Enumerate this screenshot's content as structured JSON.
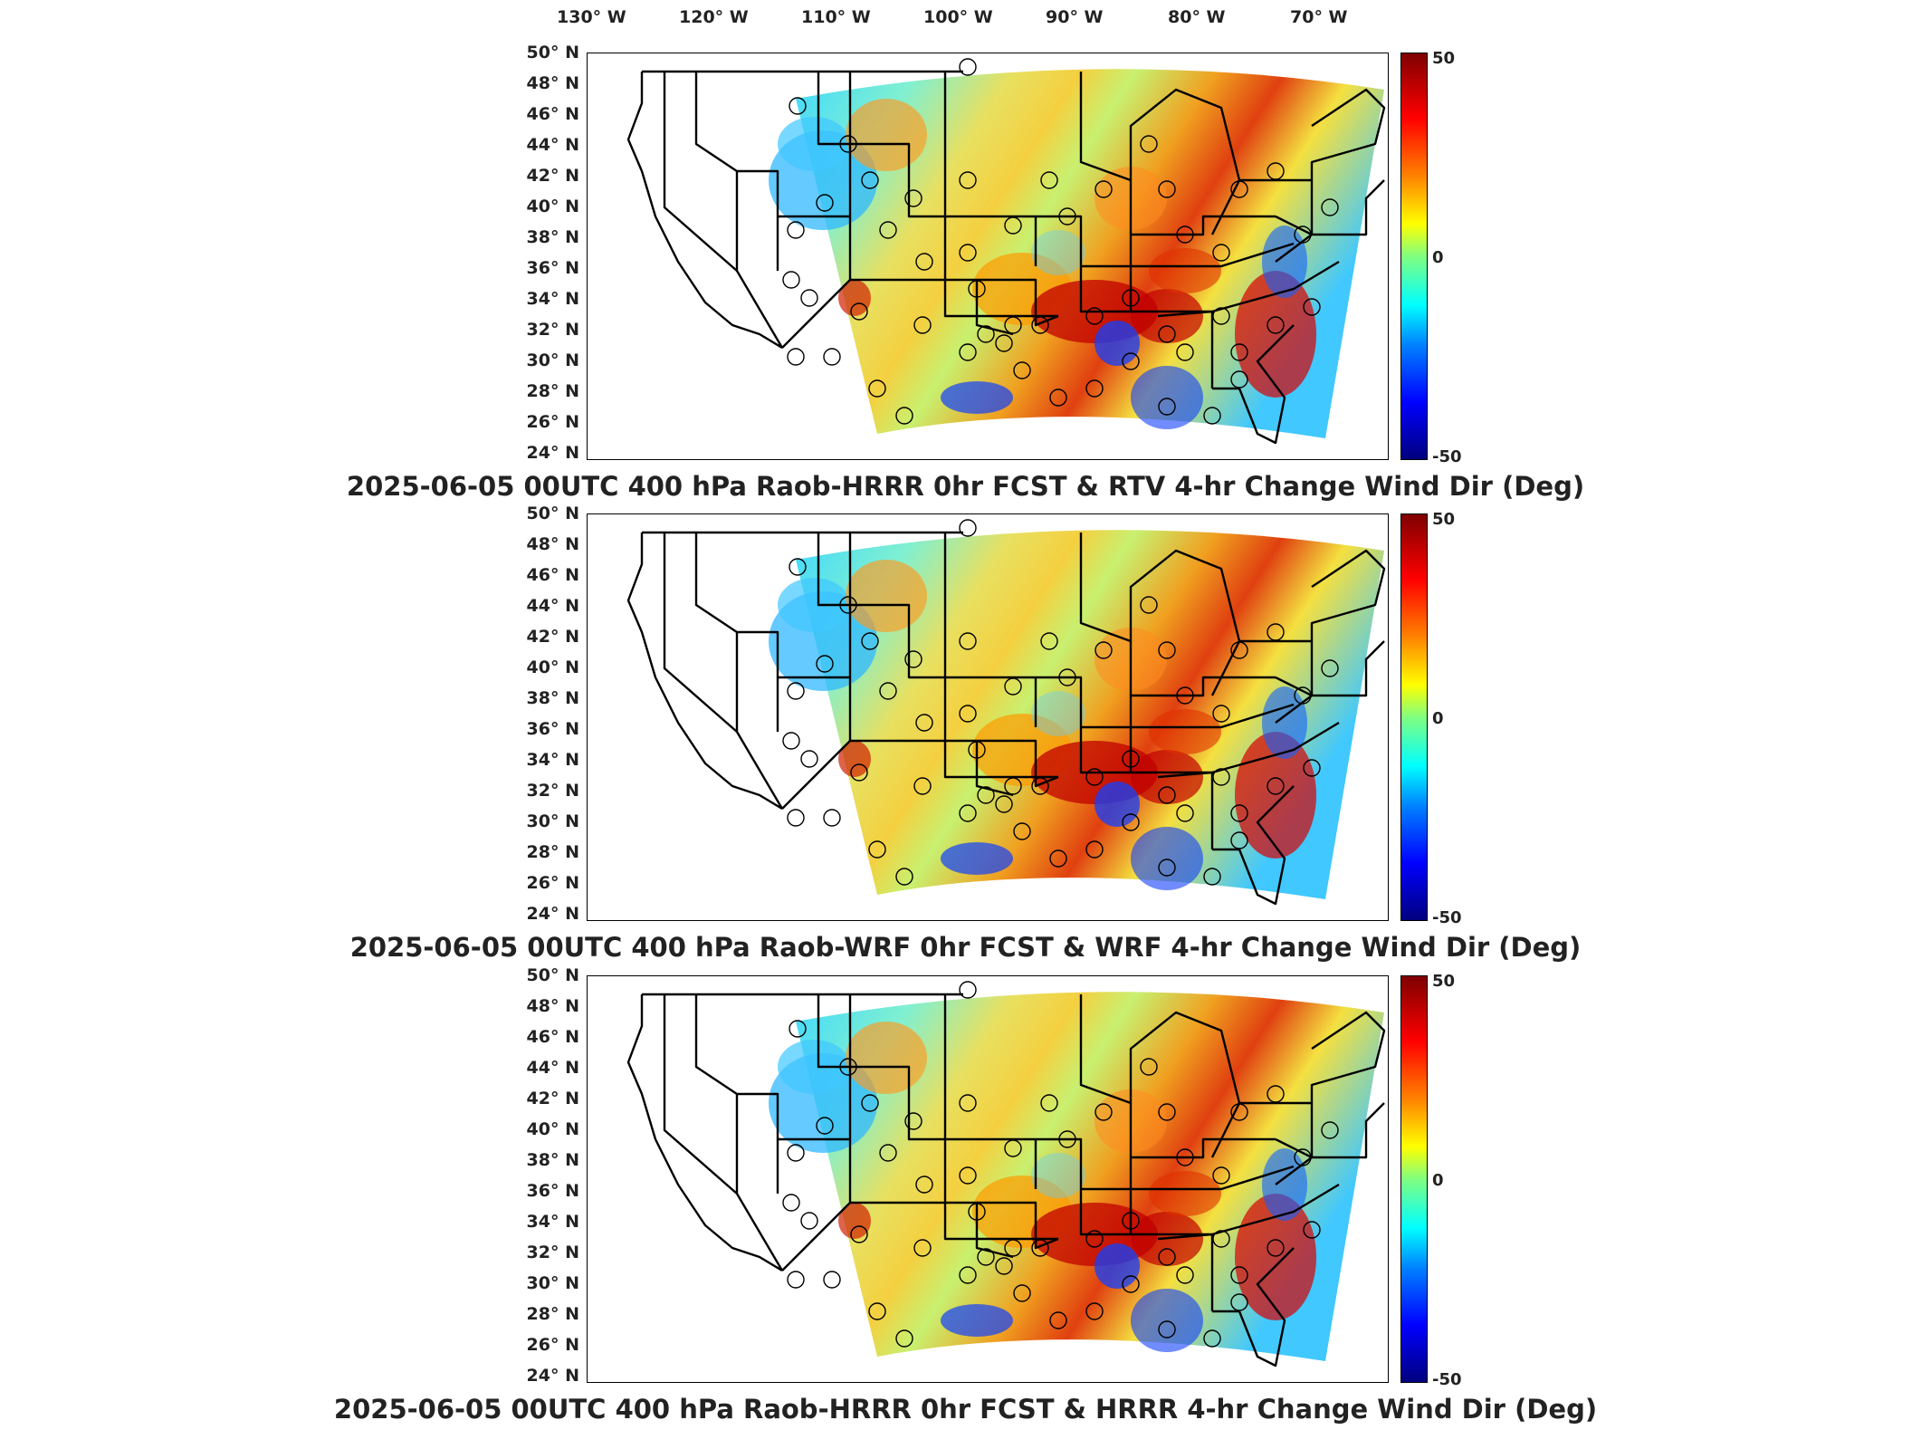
{
  "lon_labels": [
    "130° W",
    "120° W",
    "110° W",
    "100° W",
    "90° W",
    "80° W",
    "70° W"
  ],
  "lat_labels": [
    "50° N",
    "48° N",
    "46° N",
    "44° N",
    "42° N",
    "40° N",
    "38° N",
    "36° N",
    "34° N",
    "32° N",
    "30° N",
    "28° N",
    "26° N",
    "24° N"
  ],
  "colorbar": {
    "max": "50",
    "mid": "0",
    "min": "-50"
  },
  "panels": [
    {
      "title": "2025-06-05 00UTC 400 hPa Raob-HRRR 0hr FCST & RTV 4-hr Change Wind Dir (Deg)"
    },
    {
      "title": "2025-06-05 00UTC 400 hPa Raob-WRF 0hr FCST & WRF 4-hr Change Wind Dir (Deg)"
    },
    {
      "title": "2025-06-05 00UTC 400 hPa Raob-HRRR 0hr FCST & HRRR 4-hr Change Wind Dir (Deg)"
    }
  ],
  "colors": {
    "red": "#c00000",
    "orange": "#ff9a00",
    "yellow": "#f4f000",
    "green": "#8cf07a",
    "cyan": "#40d8ff",
    "blue": "#1040ff"
  }
}
